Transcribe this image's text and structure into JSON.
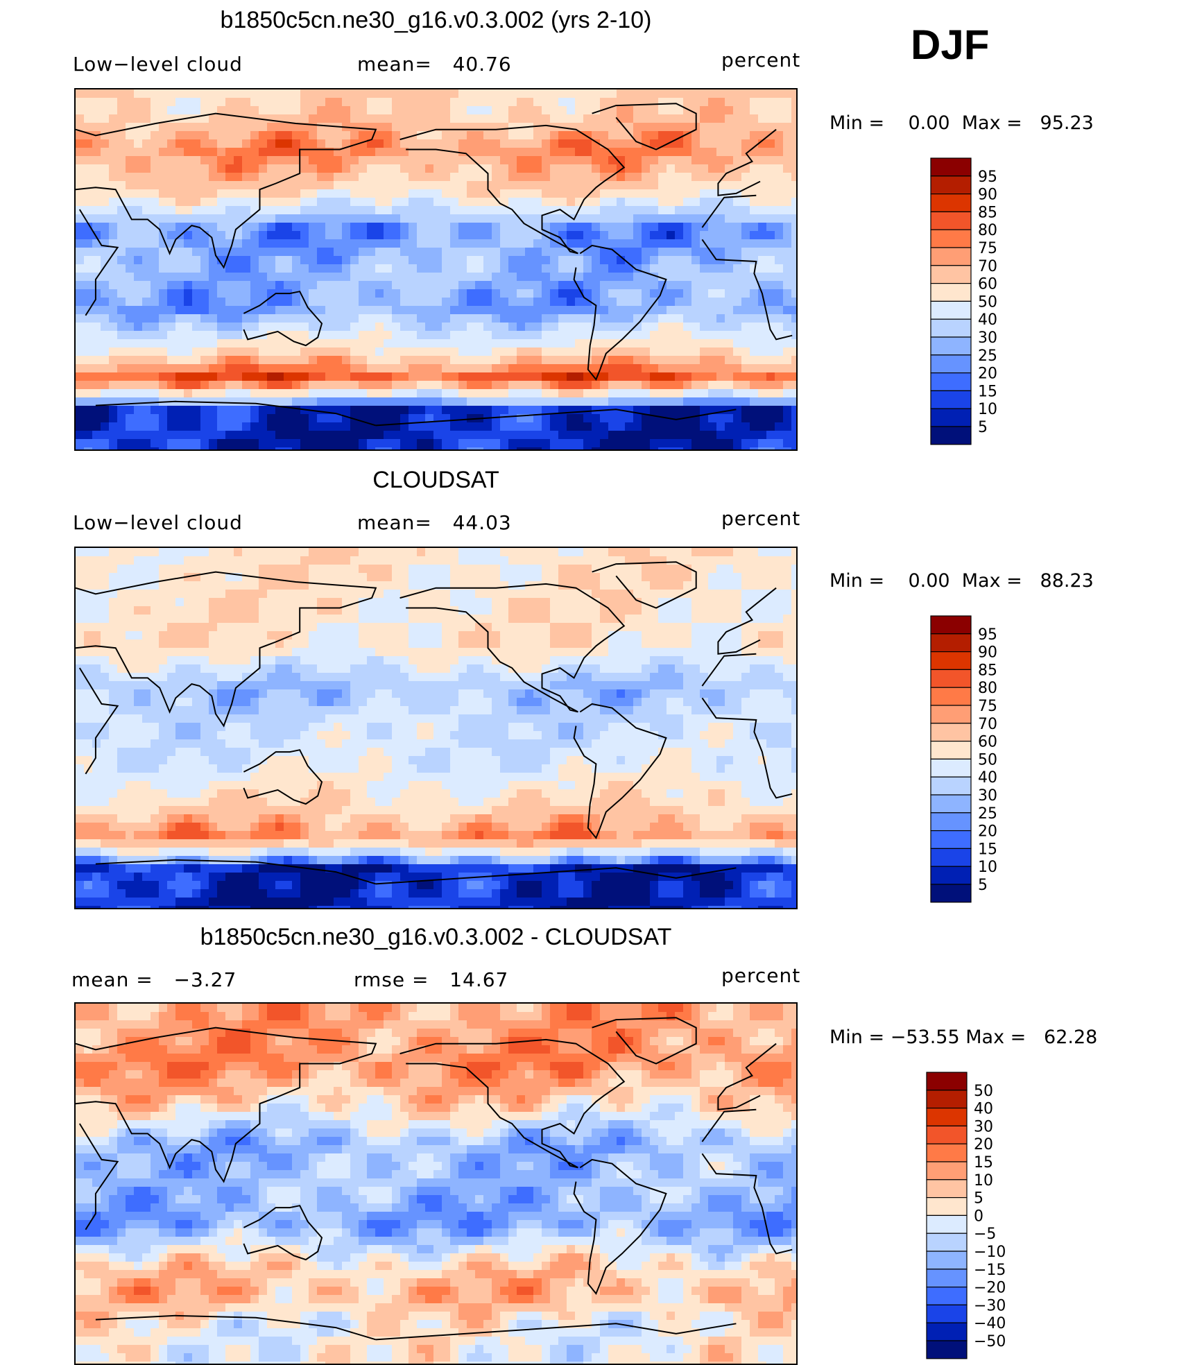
{
  "season": "DJF",
  "panels": [
    {
      "title": "b1850c5cn.ne30_g16.v0.3.002 (yrs 2-10)",
      "left_label": "Low−level cloud",
      "stat1_label": "mean=",
      "stat1_value": "40.76",
      "stat2_label": "",
      "stat2_value": "",
      "units": "percent",
      "min_label": "Min =",
      "min_value": "0.00",
      "max_label": "Max =",
      "max_value": "95.23"
    },
    {
      "title": "CLOUDSAT",
      "left_label": "Low−level cloud",
      "stat1_label": "mean=",
      "stat1_value": "44.03",
      "stat2_label": "",
      "stat2_value": "",
      "units": "percent",
      "min_label": "Min =",
      "min_value": "0.00",
      "max_label": "Max =",
      "max_value": "88.23"
    },
    {
      "title": "b1850c5cn.ne30_g16.v0.3.002 - CLOUDSAT",
      "left_label": "",
      "stat1_label": "mean =",
      "stat1_value": "−3.27",
      "stat2_label": "rmse =",
      "stat2_value": "14.67",
      "units": "percent",
      "min_label": "Min =",
      "min_value": "−53.55",
      "max_label": "Max =",
      "max_value": "62.28"
    }
  ],
  "chart_data": [
    {
      "type": "heatmap",
      "title": "b1850c5cn.ne30_g16.v0.3.002 (yrs 2-10)",
      "variable": "Low−level cloud",
      "units": "percent",
      "mean": 40.76,
      "min": 0.0,
      "max": 95.23,
      "colorbar_levels": [
        "95",
        "90",
        "85",
        "80",
        "75",
        "70",
        "60",
        "50",
        "40",
        "30",
        "25",
        "20",
        "15",
        "10",
        "5"
      ],
      "colorbar_colors": [
        "#8B0000",
        "#B41E00",
        "#DC3500",
        "#F2552A",
        "#FF7A47",
        "#FF9E75",
        "#FFC4A3",
        "#FFE6CE",
        "#DCEBFF",
        "#B9D3FF",
        "#8EB4FF",
        "#6693FF",
        "#3E6DFF",
        "#1A44E8",
        "#0020B4",
        "#00107A"
      ],
      "zonal_profile": [
        {
          "lat": 80,
          "value": 60
        },
        {
          "lat": 60,
          "value": 75
        },
        {
          "lat": 40,
          "value": 60
        },
        {
          "lat": 20,
          "value": 22
        },
        {
          "lat": 0,
          "value": 30
        },
        {
          "lat": -20,
          "value": 25
        },
        {
          "lat": -40,
          "value": 55
        },
        {
          "lat": -55,
          "value": 85
        },
        {
          "lat": -70,
          "value": 8
        }
      ]
    },
    {
      "type": "heatmap",
      "title": "CLOUDSAT",
      "variable": "Low−level cloud",
      "units": "percent",
      "mean": 44.03,
      "min": 0.0,
      "max": 88.23,
      "colorbar_levels": [
        "95",
        "90",
        "85",
        "80",
        "75",
        "70",
        "60",
        "50",
        "40",
        "30",
        "25",
        "20",
        "15",
        "10",
        "5"
      ],
      "colorbar_colors": [
        "#8B0000",
        "#B41E00",
        "#DC3500",
        "#F2552A",
        "#FF7A47",
        "#FF9E75",
        "#FFC4A3",
        "#FFE6CE",
        "#DCEBFF",
        "#B9D3FF",
        "#8EB4FF",
        "#6693FF",
        "#3E6DFF",
        "#1A44E8",
        "#0020B4",
        "#00107A"
      ],
      "zonal_profile": [
        {
          "lat": 80,
          "value": 55
        },
        {
          "lat": 60,
          "value": 55
        },
        {
          "lat": 40,
          "value": 55
        },
        {
          "lat": 20,
          "value": 30
        },
        {
          "lat": 0,
          "value": 40
        },
        {
          "lat": -20,
          "value": 45
        },
        {
          "lat": -40,
          "value": 60
        },
        {
          "lat": -55,
          "value": 75
        },
        {
          "lat": -70,
          "value": 8
        }
      ]
    },
    {
      "type": "heatmap",
      "title": "b1850c5cn.ne30_g16.v0.3.002 - CLOUDSAT",
      "units": "percent",
      "mean": -3.27,
      "rmse": 14.67,
      "min": -53.55,
      "max": 62.28,
      "colorbar_levels": [
        "50",
        "40",
        "30",
        "20",
        "15",
        "10",
        "5",
        "0",
        "−5",
        "−10",
        "−15",
        "−20",
        "−30",
        "−40",
        "−50"
      ],
      "colorbar_colors": [
        "#8B0000",
        "#B41E00",
        "#DC3500",
        "#F2552A",
        "#FF7A47",
        "#FF9E75",
        "#FFC4A3",
        "#FFE6CE",
        "#DCEBFF",
        "#B9D3FF",
        "#8EB4FF",
        "#6693FF",
        "#3E6DFF",
        "#1A44E8",
        "#0020B4",
        "#00107A"
      ],
      "zonal_profile": [
        {
          "lat": 80,
          "value": 12
        },
        {
          "lat": 60,
          "value": 15
        },
        {
          "lat": 40,
          "value": 5
        },
        {
          "lat": 20,
          "value": -12
        },
        {
          "lat": 0,
          "value": -10
        },
        {
          "lat": -20,
          "value": -15
        },
        {
          "lat": -40,
          "value": 4
        },
        {
          "lat": -55,
          "value": 10
        },
        {
          "lat": -70,
          "value": 0
        }
      ]
    }
  ]
}
